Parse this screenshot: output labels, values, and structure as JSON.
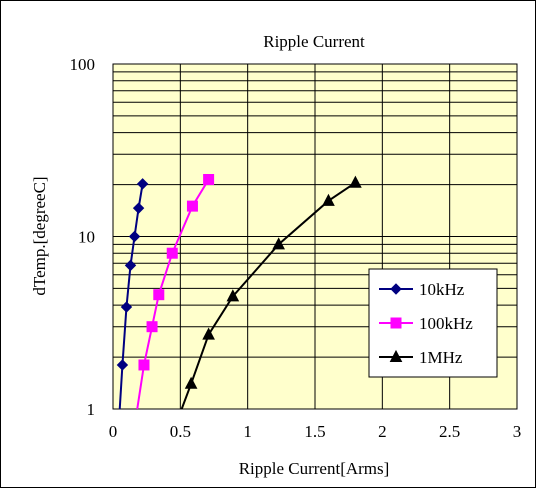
{
  "chart_data": {
    "type": "scatter",
    "title": "Ripple Current",
    "xlabel": "Ripple Current[Arms]",
    "ylabel": "dTemp.[degreeC]",
    "xlim": [
      0,
      3
    ],
    "ylim": [
      1,
      100
    ],
    "yscale": "log",
    "grid": true,
    "plot_background": "#FFFFCC",
    "xticks": [
      "0",
      "0.5",
      "1",
      "1.5",
      "2",
      "2.5",
      "3"
    ],
    "yticks": [
      "1",
      "10",
      "100"
    ],
    "legend_position": "lower-right",
    "series": [
      {
        "name": "10kHz",
        "color": "#000080",
        "marker": "diamond",
        "points": [
          [
            0.05,
            1.0
          ],
          [
            0.07,
            1.8
          ],
          [
            0.1,
            3.9
          ],
          [
            0.13,
            6.8
          ],
          [
            0.16,
            10.0
          ],
          [
            0.19,
            14.6
          ],
          [
            0.22,
            20.2
          ]
        ]
      },
      {
        "name": "100kHz",
        "color": "#FF00FF",
        "marker": "square",
        "points": [
          [
            0.18,
            1.0
          ],
          [
            0.23,
            1.8
          ],
          [
            0.29,
            3.0
          ],
          [
            0.34,
            4.6
          ],
          [
            0.44,
            8.0
          ],
          [
            0.59,
            15.0
          ],
          [
            0.71,
            21.4
          ]
        ]
      },
      {
        "name": "1MHz",
        "color": "#000000",
        "marker": "triangle",
        "points": [
          [
            0.51,
            1.0
          ],
          [
            0.58,
            1.4
          ],
          [
            0.71,
            2.7
          ],
          [
            0.89,
            4.5
          ],
          [
            1.23,
            9.0
          ],
          [
            1.6,
            16.1
          ],
          [
            1.8,
            20.5
          ]
        ]
      }
    ]
  }
}
